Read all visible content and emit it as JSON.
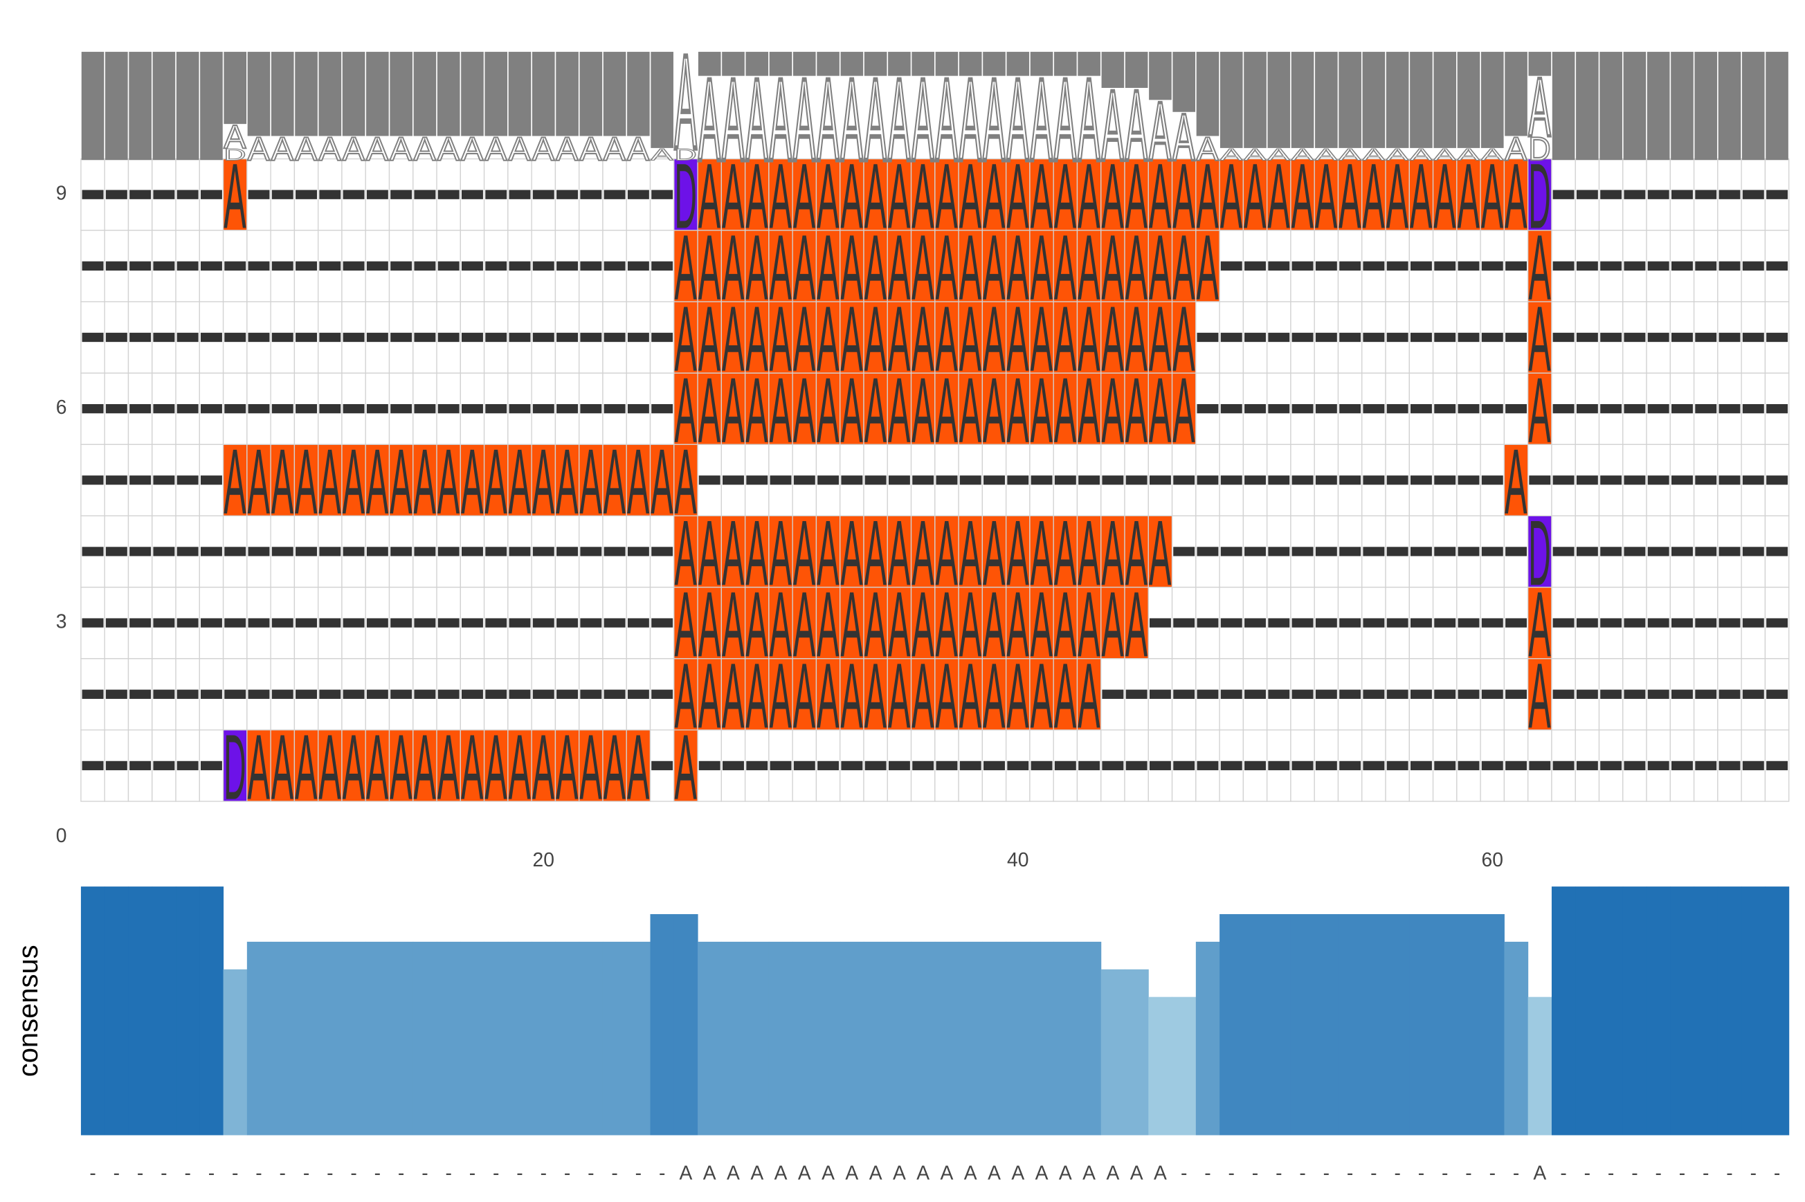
{
  "chart_data": {
    "type": "alignment",
    "sequences": [
      "------DAAAAAAAAAAAAAAAAA-A----------------------------------------------",
      "-------------------------AAAAAAAAAAAAAAAAAA------------------A----------",
      "-------------------------AAAAAAAAAAAAAAAAAAAA----------------A----------",
      "-------------------------AAAAAAAAAAAAAAAAAAAAA---------------D----------",
      "------AAAAAAAAAAAAAAAAAAAA----------------------------------A-----------",
      "-------------------------AAAAAAAAAAAAAAAAAAAAAA--------------A----------",
      "-------------------------AAAAAAAAAAAAAAAAAAAAAA--------------A----------",
      "-------------------------AAAAAAAAAAAAAAAAAAAAAAA-------------A----------",
      "------A------------------DAAAAAAAAAAAAAAAAAAAAAAAAAAAAAAAAAAAD----------"
    ],
    "letter_colors": {
      "A": "#fe5406",
      "D": "#6d12e8"
    },
    "xlim": [
      0.5,
      72.5
    ],
    "xticks": [
      20,
      40,
      60
    ],
    "ylim": [
      0,
      9.5
    ],
    "yticks": [
      0,
      3,
      6,
      9
    ],
    "ylabel": "consensus",
    "consensus": "-------------------------AAAAAAAAAAAAAAAAAAAAA---------------A----------",
    "values": [
      1,
      1,
      1,
      1,
      1,
      1,
      0.667,
      0.778,
      0.778,
      0.778,
      0.778,
      0.778,
      0.778,
      0.778,
      0.778,
      0.778,
      0.778,
      0.778,
      0.778,
      0.778,
      0.778,
      0.778,
      0.778,
      0.778,
      0.889,
      0.889,
      0.778,
      0.778,
      0.778,
      0.778,
      0.778,
      0.778,
      0.778,
      0.778,
      0.778,
      0.778,
      0.778,
      0.778,
      0.778,
      0.778,
      0.778,
      0.778,
      0.778,
      0.667,
      0.667,
      0.556,
      0.556,
      0.778,
      0.889,
      0.889,
      0.889,
      0.889,
      0.889,
      0.889,
      0.889,
      0.889,
      0.889,
      0.889,
      0.889,
      0.889,
      0.778,
      0.556,
      1,
      1,
      1,
      1,
      1,
      1,
      1,
      1,
      1,
      1
    ],
    "bar_ylim": [
      0,
      1
    ],
    "bar_colors": [
      "#9ecae1",
      "#2171b5"
    ]
  }
}
